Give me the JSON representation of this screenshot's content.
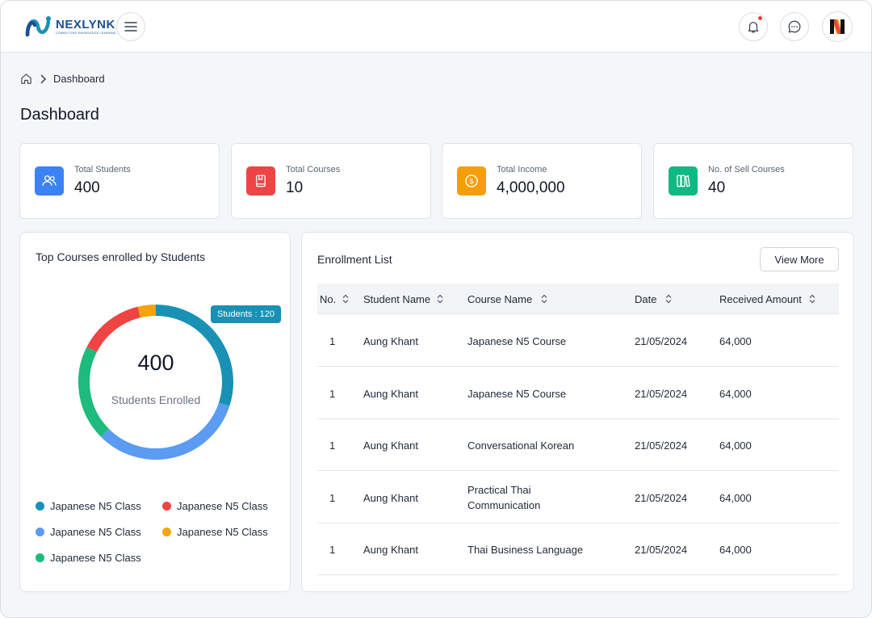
{
  "header": {
    "brand": "NEXLYNK",
    "tagline": "CONNECTING KNOWLEDGE LEARNING TODAY",
    "avatar_letter": "N",
    "icons": [
      "menu-icon",
      "bell-icon",
      "chat-icon"
    ]
  },
  "breadcrumb": {
    "current": "Dashboard"
  },
  "page_title": "Dashboard",
  "stats": [
    {
      "label": "Total Students",
      "value": "400",
      "icon": "users-icon",
      "color": "#3b82f6"
    },
    {
      "label": "Total Courses",
      "value": "10",
      "icon": "book-icon",
      "color": "#ef4444"
    },
    {
      "label": "Total Income",
      "value": "4,000,000",
      "icon": "coin-icon",
      "color": "#f59e0b"
    },
    {
      "label": "No. of Sell Courses",
      "value": "40",
      "icon": "books-icon",
      "color": "#10b981"
    }
  ],
  "chart": {
    "title": "Top Courses enrolled by Students",
    "tooltip": "Students :  120",
    "center_value": "400",
    "center_label": "Students Enrolled",
    "legend": [
      {
        "label": "Japanese N5 Class",
        "color": "#1891b4"
      },
      {
        "label": "Japanese N5 Class",
        "color": "#ef4444"
      },
      {
        "label": "Japanese N5 Class",
        "color": "#5b9cf2"
      },
      {
        "label": "Japanese N5 Class",
        "color": "#f5a40c"
      },
      {
        "label": "Japanese N5 Class",
        "color": "#1dbb7c"
      }
    ]
  },
  "chart_data": {
    "type": "pie",
    "title": "Top Courses enrolled by Students",
    "total": 400,
    "slices": [
      {
        "label": "Japanese N5 Class",
        "value": 120,
        "color": "#1891b4"
      },
      {
        "label": "Japanese N5 Class",
        "value": 130,
        "color": "#5b9cf2"
      },
      {
        "label": "Japanese N5 Class",
        "value": 80,
        "color": "#1dbb7c"
      },
      {
        "label": "Japanese N5 Class",
        "value": 55,
        "color": "#ef4444"
      },
      {
        "label": "Japanese N5 Class",
        "value": 15,
        "color": "#f5a40c"
      }
    ]
  },
  "enrollment": {
    "title": "Enrollment List",
    "view_more": "View More",
    "columns": [
      "No.",
      "Student Name",
      "Course Name",
      "Date",
      "Received Amount"
    ],
    "rows": [
      {
        "no": "1",
        "student": "Aung Khant",
        "course": "Japanese N5 Course",
        "date": "21/05/2024",
        "amount": "64,000"
      },
      {
        "no": "1",
        "student": "Aung Khant",
        "course": "Japanese N5 Course",
        "date": "21/05/2024",
        "amount": "64,000"
      },
      {
        "no": "1",
        "student": "Aung Khant",
        "course": "Conversational Korean",
        "date": "21/05/2024",
        "amount": "64,000"
      },
      {
        "no": "1",
        "student": "Aung Khant",
        "course": "Practical Thai Communication",
        "date": "21/05/2024",
        "amount": "64,000"
      },
      {
        "no": "1",
        "student": "Aung Khant",
        "course": "Thai Business Language",
        "date": "21/05/2024",
        "amount": "64,000"
      }
    ]
  }
}
